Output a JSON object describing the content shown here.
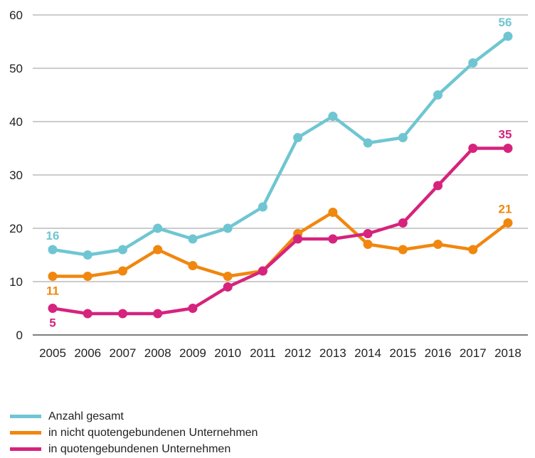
{
  "chart_data": {
    "type": "line",
    "categories": [
      "2005",
      "2006",
      "2007",
      "2008",
      "2009",
      "2010",
      "2011",
      "2012",
      "2013",
      "2014",
      "2015",
      "2016",
      "2017",
      "2018"
    ],
    "ylim": [
      0,
      60
    ],
    "yticks": [
      0,
      10,
      20,
      30,
      40,
      50,
      60
    ],
    "grid": "horizontal",
    "legend_position": "bottom-left",
    "series": [
      {
        "name": "Anzahl gesamt",
        "color": "#6fc6d2",
        "values": [
          16,
          15,
          16,
          20,
          18,
          20,
          24,
          37,
          41,
          36,
          37,
          45,
          51,
          56
        ],
        "labels": [
          {
            "index": 0,
            "text": "16"
          },
          {
            "index": 13,
            "text": "56"
          }
        ]
      },
      {
        "name": "in nicht quotengebundenen Unternehmen",
        "color": "#f0870f",
        "values": [
          11,
          11,
          12,
          16,
          13,
          11,
          12,
          19,
          23,
          17,
          16,
          17,
          16,
          21
        ],
        "labels": [
          {
            "index": 0,
            "text": "11"
          },
          {
            "index": 13,
            "text": "21"
          }
        ]
      },
      {
        "name": "in quotengebundenen Unternehmen",
        "color": "#d6237d",
        "values": [
          5,
          4,
          4,
          4,
          5,
          9,
          12,
          18,
          18,
          19,
          21,
          28,
          35,
          35
        ],
        "labels": [
          {
            "index": 0,
            "text": "5"
          },
          {
            "index": 13,
            "text": "35"
          }
        ]
      }
    ]
  }
}
